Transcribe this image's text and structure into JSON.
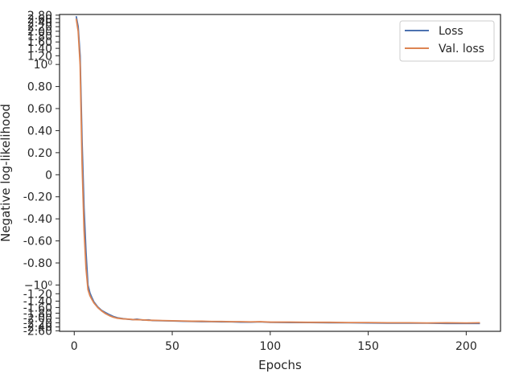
{
  "chart_data": {
    "type": "line",
    "title": "",
    "xlabel": "Epochs",
    "ylabel": "Negative log-likelihood",
    "xlim": [
      -7.5,
      217.5
    ],
    "x_ticks": [
      0,
      50,
      100,
      150,
      200
    ],
    "y_scale": "symlog",
    "y_ticks": [
      {
        "value": 2.8,
        "label": "2.80"
      },
      {
        "value": 2.6,
        "label": "2.60"
      },
      {
        "value": 2.4,
        "label": "2.40"
      },
      {
        "value": 2.2,
        "label": "2.20"
      },
      {
        "value": 2.0,
        "label": "2.00"
      },
      {
        "value": 1.8,
        "label": "1.80"
      },
      {
        "value": 1.6,
        "label": "1.60"
      },
      {
        "value": 1.4,
        "label": "1.40"
      },
      {
        "value": 1.2,
        "label": "1.20"
      },
      {
        "value": 1.0,
        "label": "10⁰"
      },
      {
        "value": 0.8,
        "label": "0.80"
      },
      {
        "value": 0.6,
        "label": "0.60"
      },
      {
        "value": 0.4,
        "label": "0.40"
      },
      {
        "value": 0.2,
        "label": "0.20"
      },
      {
        "value": 0,
        "label": "0"
      },
      {
        "value": -0.2,
        "label": "-0.20"
      },
      {
        "value": -0.4,
        "label": "-0.40"
      },
      {
        "value": -0.6,
        "label": "-0.60"
      },
      {
        "value": -0.8,
        "label": "-0.80"
      },
      {
        "value": -1.0,
        "label": "−10⁰"
      },
      {
        "value": -1.2,
        "label": "-1.20"
      },
      {
        "value": -1.4,
        "label": "-1.40"
      },
      {
        "value": -1.6,
        "label": "-1.60"
      },
      {
        "value": -1.8,
        "label": "-1.80"
      },
      {
        "value": -2.0,
        "label": "-2.00"
      },
      {
        "value": -2.2,
        "label": "-2.20"
      },
      {
        "value": -2.4,
        "label": "-2.40"
      },
      {
        "value": -2.6,
        "label": "-2.60"
      }
    ],
    "grid": false,
    "legend_position": "top-right",
    "series": [
      {
        "name": "Loss",
        "color": "#4c72b0",
        "points": [
          [
            1,
            2.74
          ],
          [
            2,
            2.2
          ],
          [
            3,
            1.2
          ],
          [
            4,
            0.3
          ],
          [
            5,
            -0.3
          ],
          [
            6,
            -0.7
          ],
          [
            7,
            -1.0
          ],
          [
            8,
            -1.18
          ],
          [
            9,
            -1.3
          ],
          [
            10,
            -1.42
          ],
          [
            12,
            -1.58
          ],
          [
            14,
            -1.7
          ],
          [
            16,
            -1.78
          ],
          [
            18,
            -1.86
          ],
          [
            20,
            -1.93
          ],
          [
            22,
            -1.98
          ],
          [
            25,
            -2.02
          ],
          [
            28,
            -2.05
          ],
          [
            30,
            -2.06
          ],
          [
            32,
            -2.04
          ],
          [
            35,
            -2.08
          ],
          [
            38,
            -2.07
          ],
          [
            40,
            -2.1
          ],
          [
            45,
            -2.11
          ],
          [
            50,
            -2.12
          ],
          [
            55,
            -2.13
          ],
          [
            60,
            -2.14
          ],
          [
            65,
            -2.15
          ],
          [
            70,
            -2.15
          ],
          [
            75,
            -2.16
          ],
          [
            80,
            -2.16
          ],
          [
            85,
            -2.17
          ],
          [
            90,
            -2.17
          ],
          [
            95,
            -2.16
          ],
          [
            100,
            -2.18
          ],
          [
            110,
            -2.19
          ],
          [
            120,
            -2.19
          ],
          [
            130,
            -2.2
          ],
          [
            140,
            -2.2
          ],
          [
            150,
            -2.21
          ],
          [
            160,
            -2.22
          ],
          [
            170,
            -2.22
          ],
          [
            180,
            -2.22
          ],
          [
            190,
            -2.23
          ],
          [
            200,
            -2.23
          ],
          [
            207,
            -2.23
          ]
        ]
      },
      {
        "name": "Val. loss",
        "color": "#dd8452",
        "points": [
          [
            1,
            2.6
          ],
          [
            2,
            2.0
          ],
          [
            3,
            1.0
          ],
          [
            4,
            0.1
          ],
          [
            5,
            -0.5
          ],
          [
            6,
            -0.85
          ],
          [
            7,
            -1.1
          ],
          [
            8,
            -1.25
          ],
          [
            9,
            -1.35
          ],
          [
            10,
            -1.45
          ],
          [
            12,
            -1.6
          ],
          [
            14,
            -1.72
          ],
          [
            16,
            -1.82
          ],
          [
            18,
            -1.9
          ],
          [
            20,
            -1.96
          ],
          [
            22,
            -2.0
          ],
          [
            25,
            -2.03
          ],
          [
            28,
            -2.04
          ],
          [
            30,
            -2.06
          ],
          [
            35,
            -2.07
          ],
          [
            38,
            -2.09
          ],
          [
            40,
            -2.09
          ],
          [
            45,
            -2.1
          ],
          [
            50,
            -2.11
          ],
          [
            55,
            -2.12
          ],
          [
            60,
            -2.13
          ],
          [
            65,
            -2.13
          ],
          [
            70,
            -2.14
          ],
          [
            75,
            -2.14
          ],
          [
            80,
            -2.15
          ],
          [
            85,
            -2.15
          ],
          [
            90,
            -2.16
          ],
          [
            95,
            -2.15
          ],
          [
            100,
            -2.17
          ],
          [
            110,
            -2.17
          ],
          [
            120,
            -2.18
          ],
          [
            130,
            -2.18
          ],
          [
            140,
            -2.19
          ],
          [
            150,
            -2.19
          ],
          [
            160,
            -2.2
          ],
          [
            170,
            -2.2
          ],
          [
            180,
            -2.21
          ],
          [
            190,
            -2.2
          ],
          [
            200,
            -2.21
          ],
          [
            207,
            -2.2
          ]
        ]
      }
    ]
  }
}
